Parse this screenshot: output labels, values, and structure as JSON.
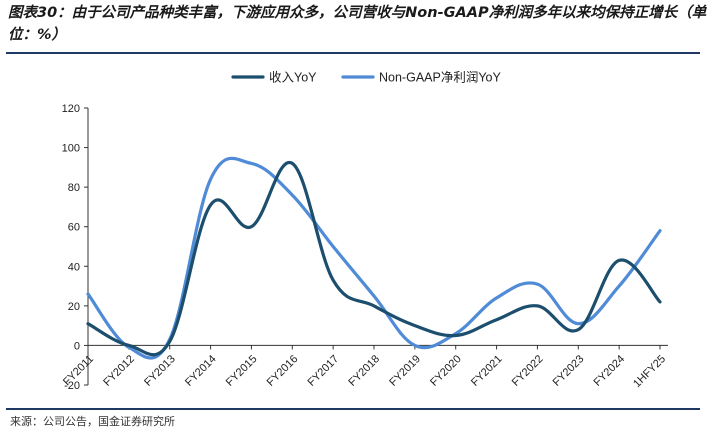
{
  "title": "图表30：由于公司产品种类丰富，下游应用众多，公司营收与Non-GAAP净利润多年以来均保持正增长（单位：%）",
  "source": "来源：公司公告，国金证券研究所",
  "chart_data": {
    "type": "line",
    "categories": [
      "FY2011",
      "FY2012",
      "FY2013",
      "FY2014",
      "FY2015",
      "FY2016",
      "FY2017",
      "FY2018",
      "FY2019",
      "FY2020",
      "FY2021",
      "FY2022",
      "FY2023",
      "FY2024",
      "1HFY25"
    ],
    "ylim": [
      -20,
      120
    ],
    "yticks": [
      -20,
      0,
      20,
      40,
      60,
      80,
      100,
      120
    ],
    "legend_position": "top",
    "grid": false,
    "smooth": true,
    "series": [
      {
        "name": "收入YoY",
        "color": "#1c4e6e",
        "values": [
          11,
          0,
          2,
          71,
          60,
          92,
          33,
          20,
          10,
          5,
          13,
          20,
          8,
          43,
          22
        ]
      },
      {
        "name": "Non-GAAP净利润YoY",
        "color": "#4f8bd6",
        "values": [
          26,
          -1,
          3,
          84,
          92,
          76,
          50,
          25,
          0,
          6,
          24,
          31,
          11,
          30,
          58
        ]
      }
    ]
  }
}
